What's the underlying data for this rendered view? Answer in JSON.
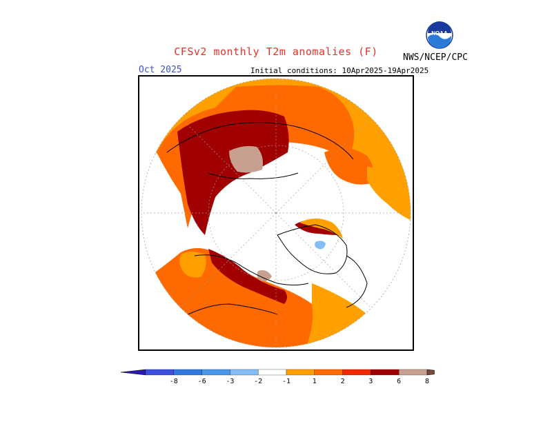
{
  "header": {
    "title": "CFSv2 monthly T2m anomalies (F)",
    "agency": "NWS/NCEP/CPC",
    "logo_text": "NOAA",
    "month": "Oct 2025",
    "initial_conditions": "Initial conditions: 10Apr2025-19Apr2025"
  },
  "legend": {
    "ticks": [
      "-8",
      "-6",
      "-3",
      "-2",
      "-1",
      "1",
      "2",
      "3",
      "6",
      "8"
    ],
    "colors": [
      "#2a1ab0",
      "#3b50dc",
      "#2e78e0",
      "#4a98ec",
      "#82bdf5",
      "#ffffff",
      "#ffa000",
      "#ff6a00",
      "#f02800",
      "#a00000",
      "#c8a090",
      "#7a4a40"
    ]
  },
  "palette": {
    "deep_red": "#a00000",
    "red": "#f02800",
    "orange_red": "#ff6a00",
    "orange": "#ffa000",
    "tan": "#c8a090",
    "light_blue": "#82bdf5"
  }
}
